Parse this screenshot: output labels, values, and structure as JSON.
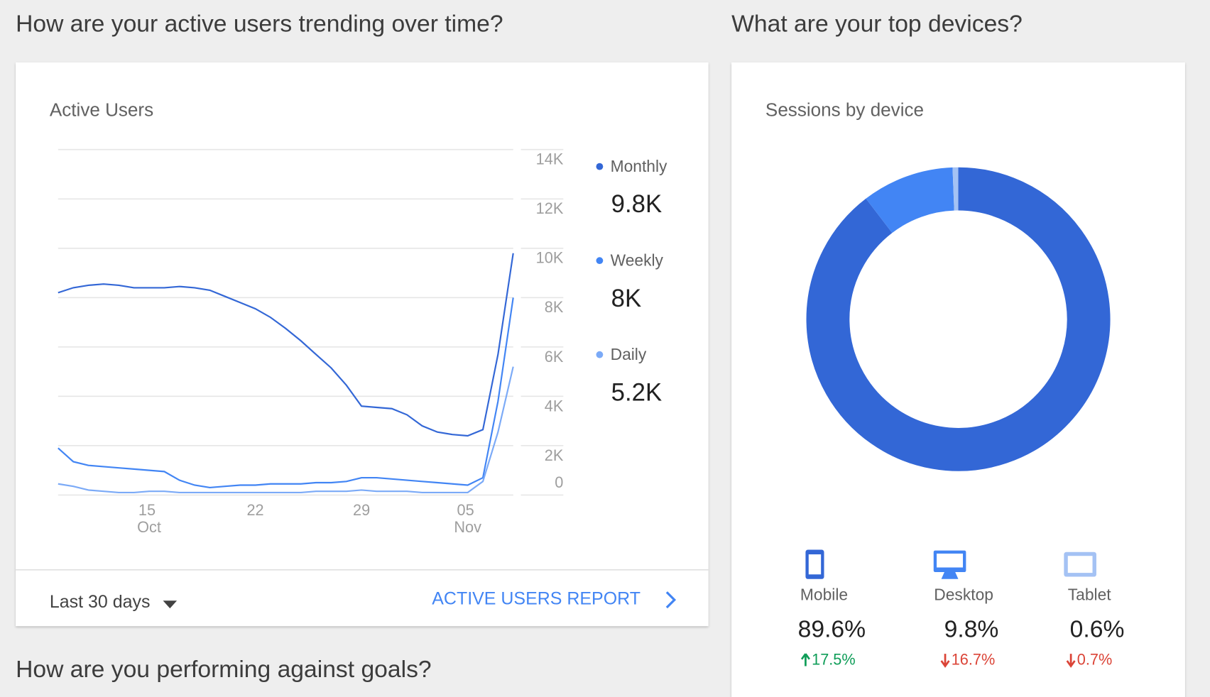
{
  "active_users": {
    "heading": "How are your active users trending over time?",
    "card": {
      "title": "Active Users",
      "chart": {
        "type": "line",
        "categories": [
          null,
          null,
          null,
          null,
          null,
          null,
          "15 Oct",
          null,
          null,
          null,
          null,
          null,
          null,
          "22",
          null,
          null,
          null,
          null,
          null,
          null,
          "29",
          null,
          null,
          null,
          null,
          null,
          null,
          "05 Nov",
          null,
          null,
          null
        ],
        "series": [
          {
            "name": "Monthly",
            "color": "#3367d6",
            "current_label": "9.8K",
            "values": [
              8200,
              8400,
              8500,
              8550,
              8500,
              8400,
              8400,
              8400,
              8450,
              8400,
              8300,
              8050,
              7800,
              7550,
              7200,
              6750,
              6250,
              5700,
              5150,
              4450,
              3600,
              3550,
              3500,
              3250,
              2800,
              2550,
              2450,
              2400,
              2650,
              5700,
              9800
            ]
          },
          {
            "name": "Weekly",
            "color": "#4285f4",
            "current_label": "8K",
            "values": [
              1900,
              1350,
              1200,
              1150,
              1100,
              1050,
              1000,
              950,
              600,
              400,
              300,
              350,
              400,
              400,
              450,
              450,
              450,
              500,
              500,
              550,
              700,
              700,
              650,
              600,
              550,
              500,
              450,
              400,
              700,
              3800,
              8000
            ]
          },
          {
            "name": "Daily",
            "color": "#7baaf7",
            "current_label": "5.2K",
            "values": [
              450,
              350,
              200,
              150,
              100,
              100,
              150,
              150,
              100,
              100,
              100,
              100,
              100,
              100,
              100,
              100,
              100,
              150,
              150,
              150,
              200,
              150,
              150,
              150,
              100,
              100,
              100,
              100,
              550,
              2550,
              5200
            ]
          }
        ],
        "ylim": [
          0,
          14000
        ],
        "yticks": [
          0,
          {
            "value": 2000,
            "label": "2K"
          },
          {
            "value": 4000,
            "label": "4K"
          },
          {
            "value": 6000,
            "label": "6K"
          },
          {
            "value": 8000,
            "label": "8K"
          },
          {
            "value": 10000,
            "label": "10K"
          },
          {
            "value": 12000,
            "label": "12K"
          },
          {
            "value": 14000,
            "label": "14K"
          }
        ],
        "grid": true
      },
      "footer": {
        "range": "Last 30 days",
        "link": "ACTIVE USERS REPORT"
      }
    }
  },
  "devices": {
    "heading": "What are your top devices?",
    "card": {
      "title": "Sessions by device",
      "chart": {
        "type": "pie",
        "categories": [
          "Mobile",
          "Desktop",
          "Tablet"
        ],
        "values": [
          89.6,
          9.8,
          0.6
        ],
        "value_labels": [
          "89.6%",
          "9.8%",
          "0.6%"
        ],
        "colors": [
          "#3367d6",
          "#4285f4",
          "#a4c2f4"
        ]
      },
      "changes": [
        {
          "text": "17.5%",
          "direction": "up"
        },
        {
          "text": "16.7%",
          "direction": "down"
        },
        {
          "text": "0.7%",
          "direction": "down"
        }
      ]
    }
  },
  "goals": {
    "heading": "How are you performing against goals?"
  }
}
